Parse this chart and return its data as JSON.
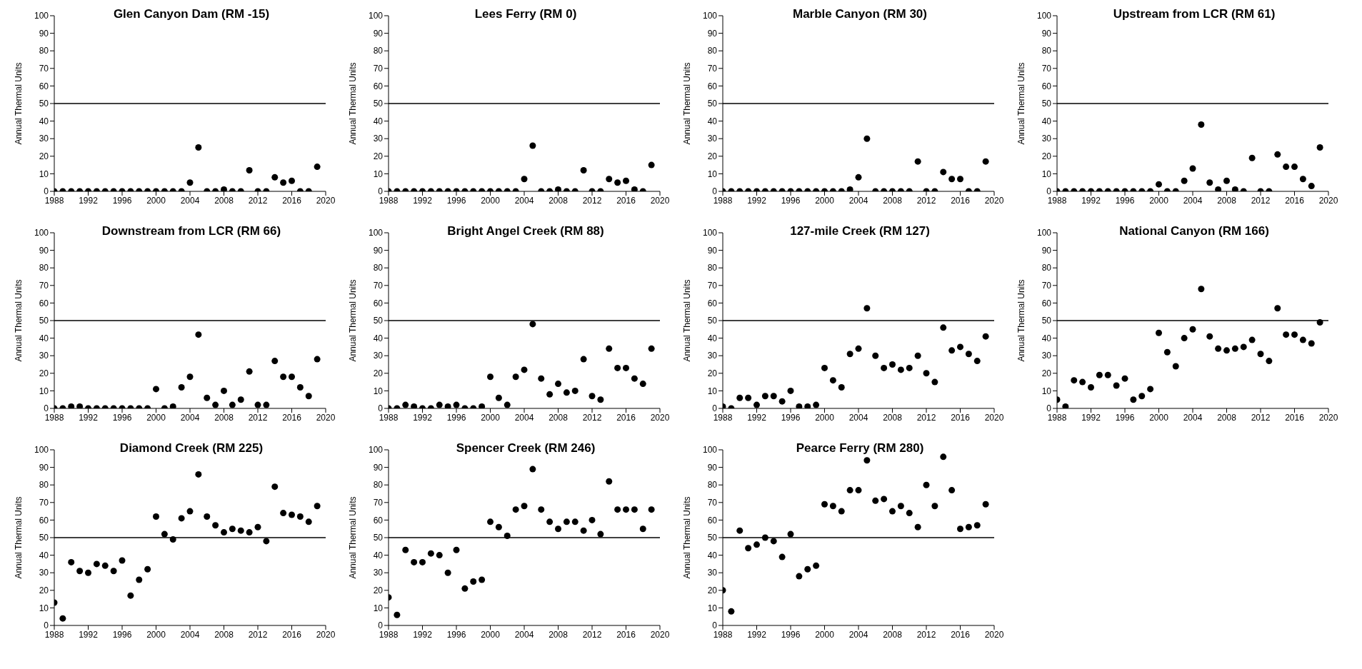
{
  "chart_data": [
    {
      "type": "scatter",
      "title": "Glen Canyon Dam (RM -15)",
      "ylabel": "Annual Thermal Units",
      "color": "#000000",
      "marker": "circle",
      "x": [
        1988,
        1989,
        1990,
        1991,
        1992,
        1993,
        1994,
        1995,
        1996,
        1997,
        1998,
        1999,
        2000,
        2001,
        2002,
        2003,
        2004,
        2005,
        2006,
        2007,
        2008,
        2009,
        2010,
        2011,
        2012,
        2013,
        2014,
        2015,
        2016,
        2017,
        2018,
        2019
      ],
      "values": [
        0,
        0,
        0,
        0,
        0,
        0,
        0,
        0,
        0,
        0,
        0,
        0,
        0,
        0,
        0,
        0,
        5,
        25,
        0,
        0,
        1,
        0,
        0,
        12,
        0,
        0,
        8,
        5,
        6,
        0,
        0,
        14
      ],
      "xlim": [
        1988,
        2020
      ],
      "xticks": [
        1988,
        1992,
        1996,
        2000,
        2004,
        2008,
        2012,
        2016,
        2020
      ],
      "ylim": [
        0,
        100
      ],
      "yticks": [
        0,
        10,
        20,
        30,
        40,
        50,
        60,
        70,
        80,
        90,
        100
      ],
      "ref_lines": [
        {
          "axis": "y",
          "value": 50,
          "color": "#000000"
        }
      ]
    },
    {
      "type": "scatter",
      "title": "Lees Ferry (RM 0)",
      "ylabel": "Annual Thermal Units",
      "color": "#000000",
      "marker": "circle",
      "x": [
        1988,
        1989,
        1990,
        1991,
        1992,
        1993,
        1994,
        1995,
        1996,
        1997,
        1998,
        1999,
        2000,
        2001,
        2002,
        2003,
        2004,
        2005,
        2006,
        2007,
        2008,
        2009,
        2010,
        2011,
        2012,
        2013,
        2014,
        2015,
        2016,
        2017,
        2018,
        2019
      ],
      "values": [
        0,
        0,
        0,
        0,
        0,
        0,
        0,
        0,
        0,
        0,
        0,
        0,
        0,
        0,
        0,
        0,
        7,
        26,
        0,
        0,
        1,
        0,
        0,
        12,
        0,
        0,
        7,
        5,
        6,
        1,
        0,
        15
      ],
      "xlim": [
        1988,
        2020
      ],
      "xticks": [
        1988,
        1992,
        1996,
        2000,
        2004,
        2008,
        2012,
        2016,
        2020
      ],
      "ylim": [
        0,
        100
      ],
      "yticks": [
        0,
        10,
        20,
        30,
        40,
        50,
        60,
        70,
        80,
        90,
        100
      ],
      "ref_lines": [
        {
          "axis": "y",
          "value": 50,
          "color": "#000000"
        }
      ]
    },
    {
      "type": "scatter",
      "title": "Marble Canyon (RM 30)",
      "ylabel": "Annual Thermal Units",
      "color": "#000000",
      "marker": "circle",
      "x": [
        1988,
        1989,
        1990,
        1991,
        1992,
        1993,
        1994,
        1995,
        1996,
        1997,
        1998,
        1999,
        2000,
        2001,
        2002,
        2003,
        2004,
        2005,
        2006,
        2007,
        2008,
        2009,
        2010,
        2011,
        2012,
        2013,
        2014,
        2015,
        2016,
        2017,
        2018,
        2019
      ],
      "values": [
        0,
        0,
        0,
        0,
        0,
        0,
        0,
        0,
        0,
        0,
        0,
        0,
        0,
        0,
        0,
        1,
        8,
        30,
        0,
        0,
        0,
        0,
        0,
        17,
        0,
        0,
        11,
        7,
        7,
        0,
        0,
        17
      ],
      "xlim": [
        1988,
        2020
      ],
      "xticks": [
        1988,
        1992,
        1996,
        2000,
        2004,
        2008,
        2012,
        2016,
        2020
      ],
      "ylim": [
        0,
        100
      ],
      "yticks": [
        0,
        10,
        20,
        30,
        40,
        50,
        60,
        70,
        80,
        90,
        100
      ],
      "ref_lines": [
        {
          "axis": "y",
          "value": 50,
          "color": "#000000"
        }
      ]
    },
    {
      "type": "scatter",
      "title": "Upstream from LCR (RM 61)",
      "ylabel": "Annual Thermal Units",
      "color": "#000000",
      "marker": "circle",
      "x": [
        1988,
        1989,
        1990,
        1991,
        1992,
        1993,
        1994,
        1995,
        1996,
        1997,
        1998,
        1999,
        2000,
        2001,
        2002,
        2003,
        2004,
        2005,
        2006,
        2007,
        2008,
        2009,
        2010,
        2011,
        2012,
        2013,
        2014,
        2015,
        2016,
        2017,
        2018,
        2019
      ],
      "values": [
        0,
        0,
        0,
        0,
        0,
        0,
        0,
        0,
        0,
        0,
        0,
        0,
        4,
        0,
        0,
        6,
        13,
        38,
        5,
        1,
        6,
        1,
        0,
        19,
        0,
        0,
        21,
        14,
        14,
        7,
        3,
        25
      ],
      "xlim": [
        1988,
        2020
      ],
      "xticks": [
        1988,
        1992,
        1996,
        2000,
        2004,
        2008,
        2012,
        2016,
        2020
      ],
      "ylim": [
        0,
        100
      ],
      "yticks": [
        0,
        10,
        20,
        30,
        40,
        50,
        60,
        70,
        80,
        90,
        100
      ],
      "ref_lines": [
        {
          "axis": "y",
          "value": 50,
          "color": "#000000"
        }
      ]
    },
    {
      "type": "scatter",
      "title": "Downstream from LCR (RM 66)",
      "ylabel": "Annual Thermal Units",
      "color": "#000000",
      "marker": "circle",
      "x": [
        1988,
        1989,
        1990,
        1991,
        1992,
        1993,
        1994,
        1995,
        1996,
        1997,
        1998,
        1999,
        2000,
        2001,
        2002,
        2003,
        2004,
        2005,
        2006,
        2007,
        2008,
        2009,
        2010,
        2011,
        2012,
        2013,
        2014,
        2015,
        2016,
        2017,
        2018,
        2019
      ],
      "values": [
        0,
        0,
        1,
        1,
        0,
        0,
        0,
        0,
        0,
        0,
        0,
        0,
        11,
        0,
        1,
        12,
        18,
        42,
        6,
        2,
        10,
        2,
        5,
        21,
        2,
        2,
        27,
        18,
        18,
        12,
        7,
        28
      ],
      "xlim": [
        1988,
        2020
      ],
      "xticks": [
        1988,
        1992,
        1996,
        2000,
        2004,
        2008,
        2012,
        2016,
        2020
      ],
      "ylim": [
        0,
        100
      ],
      "yticks": [
        0,
        10,
        20,
        30,
        40,
        50,
        60,
        70,
        80,
        90,
        100
      ],
      "ref_lines": [
        {
          "axis": "y",
          "value": 50,
          "color": "#000000"
        }
      ]
    },
    {
      "type": "scatter",
      "title": "Bright Angel Creek (RM 88)",
      "ylabel": "Annual Thermal Units",
      "color": "#000000",
      "marker": "circle",
      "x": [
        1988,
        1989,
        1990,
        1991,
        1992,
        1993,
        1994,
        1995,
        1996,
        1997,
        1998,
        1999,
        2000,
        2001,
        2002,
        2003,
        2004,
        2005,
        2006,
        2007,
        2008,
        2009,
        2010,
        2011,
        2012,
        2013,
        2014,
        2015,
        2016,
        2017,
        2018,
        2019
      ],
      "values": [
        0,
        0,
        2,
        1,
        0,
        0,
        2,
        1,
        2,
        0,
        0,
        1,
        18,
        6,
        2,
        18,
        22,
        48,
        17,
        8,
        14,
        9,
        10,
        28,
        7,
        5,
        34,
        23,
        23,
        17,
        14,
        34
      ],
      "xlim": [
        1988,
        2020
      ],
      "xticks": [
        1988,
        1992,
        1996,
        2000,
        2004,
        2008,
        2012,
        2016,
        2020
      ],
      "ylim": [
        0,
        100
      ],
      "yticks": [
        0,
        10,
        20,
        30,
        40,
        50,
        60,
        70,
        80,
        90,
        100
      ],
      "ref_lines": [
        {
          "axis": "y",
          "value": 50,
          "color": "#000000"
        }
      ]
    },
    {
      "type": "scatter",
      "title": "127-mile Creek (RM 127)",
      "ylabel": "Annual Thermal Units",
      "color": "#000000",
      "marker": "circle",
      "x": [
        1988,
        1989,
        1990,
        1991,
        1992,
        1993,
        1994,
        1995,
        1996,
        1997,
        1998,
        1999,
        2000,
        2001,
        2002,
        2003,
        2004,
        2005,
        2006,
        2007,
        2008,
        2009,
        2010,
        2011,
        2012,
        2013,
        2014,
        2015,
        2016,
        2017,
        2018,
        2019
      ],
      "values": [
        1,
        0,
        6,
        6,
        2,
        7,
        7,
        4,
        10,
        1,
        1,
        2,
        23,
        16,
        12,
        31,
        34,
        57,
        30,
        23,
        25,
        22,
        23,
        30,
        20,
        15,
        46,
        33,
        35,
        31,
        27,
        41
      ],
      "xlim": [
        1988,
        2020
      ],
      "xticks": [
        1988,
        1992,
        1996,
        2000,
        2004,
        2008,
        2012,
        2016,
        2020
      ],
      "ylim": [
        0,
        100
      ],
      "yticks": [
        0,
        10,
        20,
        30,
        40,
        50,
        60,
        70,
        80,
        90,
        100
      ],
      "ref_lines": [
        {
          "axis": "y",
          "value": 50,
          "color": "#000000"
        }
      ]
    },
    {
      "type": "scatter",
      "title": "National Canyon (RM 166)",
      "ylabel": "Annual Thermal Units",
      "color": "#000000",
      "marker": "circle",
      "x": [
        1988,
        1989,
        1990,
        1991,
        1992,
        1993,
        1994,
        1995,
        1996,
        1997,
        1998,
        1999,
        2000,
        2001,
        2002,
        2003,
        2004,
        2005,
        2006,
        2007,
        2008,
        2009,
        2010,
        2011,
        2012,
        2013,
        2014,
        2015,
        2016,
        2017,
        2018,
        2019
      ],
      "values": [
        5,
        1,
        16,
        15,
        12,
        19,
        19,
        13,
        17,
        5,
        7,
        11,
        43,
        32,
        24,
        40,
        45,
        68,
        41,
        34,
        33,
        34,
        35,
        39,
        31,
        27,
        57,
        42,
        42,
        39,
        37,
        49
      ],
      "xlim": [
        1988,
        2020
      ],
      "xticks": [
        1988,
        1992,
        1996,
        2000,
        2004,
        2008,
        2012,
        2016,
        2020
      ],
      "ylim": [
        0,
        100
      ],
      "yticks": [
        0,
        10,
        20,
        30,
        40,
        50,
        60,
        70,
        80,
        90,
        100
      ],
      "ref_lines": [
        {
          "axis": "y",
          "value": 50,
          "color": "#000000"
        }
      ]
    },
    {
      "type": "scatter",
      "title": "Diamond Creek (RM 225)",
      "ylabel": "Annual Thermal Units",
      "color": "#000000",
      "marker": "circle",
      "x": [
        1988,
        1989,
        1990,
        1991,
        1992,
        1993,
        1994,
        1995,
        1996,
        1997,
        1998,
        1999,
        2000,
        2001,
        2002,
        2003,
        2004,
        2005,
        2006,
        2007,
        2008,
        2009,
        2010,
        2011,
        2012,
        2013,
        2014,
        2015,
        2016,
        2017,
        2018,
        2019
      ],
      "values": [
        13,
        4,
        36,
        31,
        30,
        35,
        34,
        31,
        37,
        17,
        26,
        32,
        62,
        52,
        49,
        61,
        65,
        86,
        62,
        57,
        53,
        55,
        54,
        53,
        56,
        48,
        79,
        64,
        63,
        62,
        59,
        68
      ],
      "xlim": [
        1988,
        2020
      ],
      "xticks": [
        1988,
        1992,
        1996,
        2000,
        2004,
        2008,
        2012,
        2016,
        2020
      ],
      "ylim": [
        0,
        100
      ],
      "yticks": [
        0,
        10,
        20,
        30,
        40,
        50,
        60,
        70,
        80,
        90,
        100
      ],
      "ref_lines": [
        {
          "axis": "y",
          "value": 50,
          "color": "#000000"
        }
      ]
    },
    {
      "type": "scatter",
      "title": "Spencer Creek (RM 246)",
      "ylabel": "Annual Thermal Units",
      "color": "#000000",
      "marker": "circle",
      "x": [
        1988,
        1989,
        1990,
        1991,
        1992,
        1993,
        1994,
        1995,
        1996,
        1997,
        1998,
        1999,
        2000,
        2001,
        2002,
        2003,
        2004,
        2005,
        2006,
        2007,
        2008,
        2009,
        2010,
        2011,
        2012,
        2013,
        2014,
        2015,
        2016,
        2017,
        2018,
        2019
      ],
      "values": [
        16,
        6,
        43,
        36,
        36,
        41,
        40,
        30,
        43,
        21,
        25,
        26,
        59,
        56,
        51,
        66,
        68,
        89,
        66,
        59,
        55,
        59,
        59,
        54,
        60,
        52,
        82,
        66,
        66,
        66,
        55,
        66
      ],
      "xlim": [
        1988,
        2020
      ],
      "xticks": [
        1988,
        1992,
        1996,
        2000,
        2004,
        2008,
        2012,
        2016,
        2020
      ],
      "ylim": [
        0,
        100
      ],
      "yticks": [
        0,
        10,
        20,
        30,
        40,
        50,
        60,
        70,
        80,
        90,
        100
      ],
      "ref_lines": [
        {
          "axis": "y",
          "value": 50,
          "color": "#000000"
        }
      ]
    },
    {
      "type": "scatter",
      "title": "Pearce Ferry (RM 280)",
      "ylabel": "Annual Thermal Units",
      "color": "#000000",
      "marker": "circle",
      "x": [
        1988,
        1989,
        1990,
        1991,
        1992,
        1993,
        1994,
        1995,
        1996,
        1997,
        1998,
        1999,
        2000,
        2001,
        2002,
        2003,
        2004,
        2005,
        2006,
        2007,
        2008,
        2009,
        2010,
        2011,
        2012,
        2013,
        2014,
        2015,
        2016,
        2017,
        2018,
        2019
      ],
      "values": [
        20,
        8,
        54,
        44,
        46,
        50,
        48,
        39,
        52,
        28,
        32,
        34,
        69,
        68,
        65,
        77,
        77,
        94,
        71,
        72,
        65,
        68,
        64,
        56,
        80,
        68,
        96,
        77,
        55,
        56,
        57,
        69
      ],
      "xlim": [
        1988,
        2020
      ],
      "xticks": [
        1988,
        1992,
        1996,
        2000,
        2004,
        2008,
        2012,
        2016,
        2020
      ],
      "ylim": [
        0,
        100
      ],
      "yticks": [
        0,
        10,
        20,
        30,
        40,
        50,
        60,
        70,
        80,
        90,
        100
      ],
      "ref_lines": [
        {
          "axis": "y",
          "value": 50,
          "color": "#000000"
        }
      ]
    }
  ]
}
